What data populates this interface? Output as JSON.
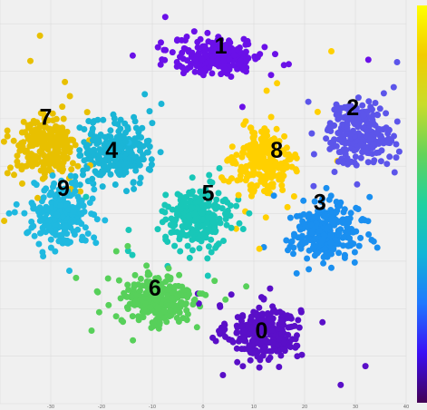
{
  "chart_data": {
    "type": "scatter",
    "title": "",
    "xlabel": "",
    "ylabel": "",
    "xlim": [
      -40,
      40
    ],
    "ylim": [
      -40,
      45
    ],
    "grid": true,
    "legend": "colorbar-right",
    "colormap": [
      "#440154",
      "#3b0ef5",
      "#1f78ff",
      "#12b5d6",
      "#1fd1a0",
      "#64d35a",
      "#c8dc2b",
      "#f2cc00",
      "#ffff00"
    ],
    "x_tick_labels": [
      "-30",
      "-20",
      "-10",
      "0",
      "10",
      "20",
      "30",
      "40"
    ],
    "point_size": 3.5,
    "series": [
      {
        "digit": "0",
        "color": "#5a0fc8",
        "center": [
          12,
          -25
        ],
        "spread": [
          6.5,
          5
        ],
        "n": 260
      },
      {
        "digit": "1",
        "color": "#6a10e8",
        "center": [
          3,
          33
        ],
        "spread": [
          8,
          3.5
        ],
        "n": 240
      },
      {
        "digit": "2",
        "color": "#5c55ea",
        "center": [
          31,
          17
        ],
        "spread": [
          6,
          6
        ],
        "n": 220
      },
      {
        "digit": "3",
        "color": "#1a8ff0",
        "center": [
          24,
          -4
        ],
        "spread": [
          6,
          5
        ],
        "n": 260
      },
      {
        "digit": "4",
        "color": "#1ab5d6",
        "center": [
          -17,
          13
        ],
        "spread": [
          6,
          5.5
        ],
        "n": 260
      },
      {
        "digit": "5",
        "color": "#18c7b8",
        "center": [
          -1,
          -1
        ],
        "spread": [
          6,
          5
        ],
        "n": 240
      },
      {
        "digit": "6",
        "color": "#57d05a",
        "center": [
          -9,
          -18
        ],
        "spread": [
          6.5,
          5
        ],
        "n": 260
      },
      {
        "digit": "7",
        "color": "#e8c000",
        "center": [
          -31,
          14
        ],
        "spread": [
          6,
          6
        ],
        "n": 240
      },
      {
        "digit": "8",
        "color": "#ffd000",
        "center": [
          12,
          11
        ],
        "spread": [
          5,
          6
        ],
        "n": 250
      },
      {
        "digit": "9",
        "color": "#1fb9e0",
        "center": [
          -28,
          0
        ],
        "spread": [
          5,
          6
        ],
        "n": 230
      }
    ],
    "labels": [
      {
        "text": "0",
        "x": 11.5,
        "y": -25
      },
      {
        "text": "1",
        "x": 3.5,
        "y": 35
      },
      {
        "text": "2",
        "x": 29.5,
        "y": 22
      },
      {
        "text": "3",
        "x": 23,
        "y": 2
      },
      {
        "text": "4",
        "x": -18,
        "y": 13
      },
      {
        "text": "5",
        "x": 1,
        "y": 4
      },
      {
        "text": "6",
        "x": -9.5,
        "y": -16
      },
      {
        "text": "7",
        "x": -31,
        "y": 20
      },
      {
        "text": "8",
        "x": 14.5,
        "y": 13
      },
      {
        "text": "9",
        "x": -27.5,
        "y": 5
      }
    ]
  }
}
